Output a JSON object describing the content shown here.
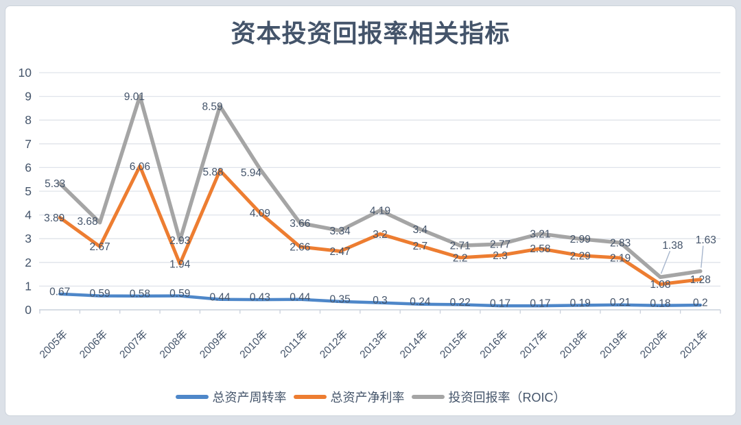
{
  "chart_data": {
    "type": "line",
    "title": "资本投资回报率相关指标",
    "categories": [
      "2005年",
      "2006年",
      "2007年",
      "2008年",
      "2009年",
      "2010年",
      "2011年",
      "2012年",
      "2013年",
      "2014年",
      "2015年",
      "2016年",
      "2017年",
      "2018年",
      "2019年",
      "2020年",
      "2021年"
    ],
    "series": [
      {
        "name": "总资产周转率",
        "color": "#4E87C9",
        "values": [
          0.67,
          0.59,
          0.58,
          0.59,
          0.44,
          0.43,
          0.44,
          0.35,
          0.3,
          0.24,
          0.22,
          0.17,
          0.17,
          0.19,
          0.21,
          0.18,
          0.2
        ]
      },
      {
        "name": "总资产净利率",
        "color": "#ED7D31",
        "values": [
          3.89,
          2.67,
          6.06,
          1.94,
          5.88,
          4.09,
          2.66,
          2.47,
          3.2,
          2.7,
          2.2,
          2.3,
          2.58,
          2.29,
          2.19,
          1.08,
          1.28
        ]
      },
      {
        "name": "投资回报率（ROIC）",
        "color": "#A5A5A5",
        "values": [
          5.33,
          3.68,
          9.01,
          2.93,
          8.59,
          5.94,
          3.66,
          3.34,
          4.19,
          3.4,
          2.71,
          2.77,
          3.21,
          2.99,
          2.83,
          1.38,
          1.63
        ]
      }
    ],
    "ylim": [
      0,
      10
    ],
    "ytick_interval": 1,
    "ytick_labels": [
      "0",
      "1",
      "2",
      "3",
      "4",
      "5",
      "6",
      "7",
      "8",
      "9",
      "10"
    ],
    "xlabel": "",
    "ylabel": "",
    "grid": "horizontal",
    "legend_position": "bottom",
    "data_labels": "every point, value shown centered on marker",
    "callout_labels": [
      {
        "series": "投资回报率（ROIC）",
        "category": "2020年",
        "value": 1.38
      },
      {
        "series": "投资回报率（ROIC）",
        "category": "2021年",
        "value": 1.63
      }
    ]
  },
  "theme": {
    "text_color": "#44546A",
    "grid_color": "#DFE3EA",
    "axis_color": "#C9D0DC",
    "leader_line_color": "#A6B5CC",
    "card_background": "#FFFFFF",
    "page_background": "#DCE1E8"
  }
}
